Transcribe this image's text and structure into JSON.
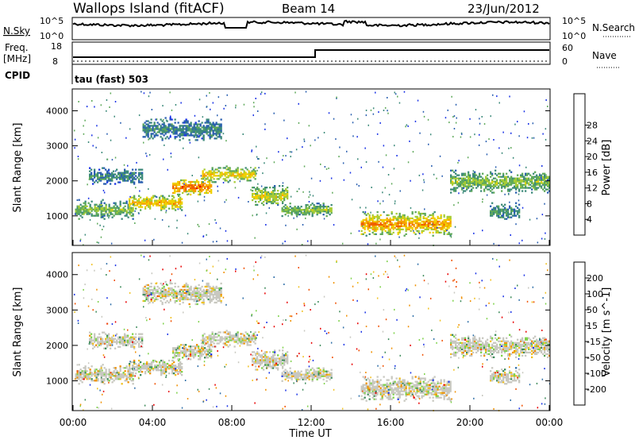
{
  "header": {
    "station": "Wallops Island (fitACF)",
    "beam": "Beam 14",
    "date": "23/Jun/2012"
  },
  "panels": {
    "noise": {
      "left_label": "N.Sky",
      "left_ticks": [
        "10^5",
        "10^0"
      ],
      "right_label": "N.Search",
      "right_ticks": [
        "10^5",
        "10^0"
      ]
    },
    "freq": {
      "left_label_1": "Freq.",
      "left_label_2": "[MHz]",
      "left_ticks": [
        "18",
        "8"
      ],
      "right_label": "Nave",
      "right_ticks": [
        "60",
        "0"
      ],
      "cpid_label": "CPID",
      "cpid_value": "tau (fast) 503"
    }
  },
  "chart_data": [
    {
      "type": "heatmap",
      "name": "power",
      "ylabel": "Slant Range [km]",
      "xlabel": "Time UT",
      "x_ticks": [
        "00:00",
        "04:00",
        "08:00",
        "12:00",
        "16:00",
        "20:00",
        "00:00"
      ],
      "x_range_hours": [
        0,
        24
      ],
      "y_ticks": [
        1000,
        2000,
        3000,
        4000
      ],
      "ylim": [
        180,
        4600
      ],
      "colorbar": {
        "label": "Power [dB]",
        "ticks": [
          4,
          8,
          12,
          16,
          20,
          24,
          28
        ],
        "range": [
          0,
          30
        ],
        "colors": [
          "#1a33e6",
          "#2a5fb0",
          "#3d8a7a",
          "#5fa95a",
          "#a7cc35",
          "#f0d000",
          "#f5a000",
          "#f06000",
          "#e80000"
        ]
      },
      "echo_regions": [
        {
          "t_start": 0.1,
          "t_end": 3.0,
          "range_center": 1150,
          "range_width": 300,
          "power": 14
        },
        {
          "t_start": 2.8,
          "t_end": 5.5,
          "range_center": 1350,
          "range_width": 250,
          "power": 22
        },
        {
          "t_start": 5.0,
          "t_end": 7.0,
          "range_center": 1800,
          "range_width": 300,
          "power": 26
        },
        {
          "t_start": 6.5,
          "t_end": 9.2,
          "range_center": 2150,
          "range_width": 250,
          "power": 20
        },
        {
          "t_start": 9.0,
          "t_end": 10.8,
          "range_center": 1550,
          "range_width": 300,
          "power": 18
        },
        {
          "t_start": 10.5,
          "t_end": 13.0,
          "range_center": 1150,
          "range_width": 220,
          "power": 14
        },
        {
          "t_start": 14.5,
          "t_end": 19.0,
          "range_center": 750,
          "range_width": 380,
          "power": 24
        },
        {
          "t_start": 19.0,
          "t_end": 24.0,
          "range_center": 1950,
          "range_width": 350,
          "power": 14
        },
        {
          "t_start": 3.5,
          "t_end": 7.5,
          "range_center": 3450,
          "range_width": 350,
          "power": 8
        },
        {
          "t_start": 0.8,
          "t_end": 3.5,
          "range_center": 2100,
          "range_width": 250,
          "power": 8
        },
        {
          "t_start": 21.0,
          "t_end": 22.5,
          "range_center": 1100,
          "range_width": 250,
          "power": 10
        }
      ]
    },
    {
      "type": "heatmap",
      "name": "velocity",
      "ylabel": "Slant Range [km]",
      "xlabel": "Time UT",
      "x_ticks": [
        "00:00",
        "04:00",
        "08:00",
        "12:00",
        "16:00",
        "20:00",
        "00:00"
      ],
      "x_range_hours": [
        0,
        24
      ],
      "y_ticks": [
        1000,
        2000,
        3000,
        4000
      ],
      "ylim": [
        180,
        4600
      ],
      "colorbar": {
        "label": "Velocity [m s^-1]",
        "ticks": [
          "200",
          "100",
          "50",
          "15",
          "-15",
          "-50",
          "-100",
          "-200"
        ],
        "colors": [
          "#1a33e6",
          "#2f6fa8",
          "#3d8a5a",
          "#7ed24a",
          "#c8c8c0",
          "#f0c020",
          "#f09000",
          "#f05000",
          "#e80000"
        ]
      }
    }
  ]
}
